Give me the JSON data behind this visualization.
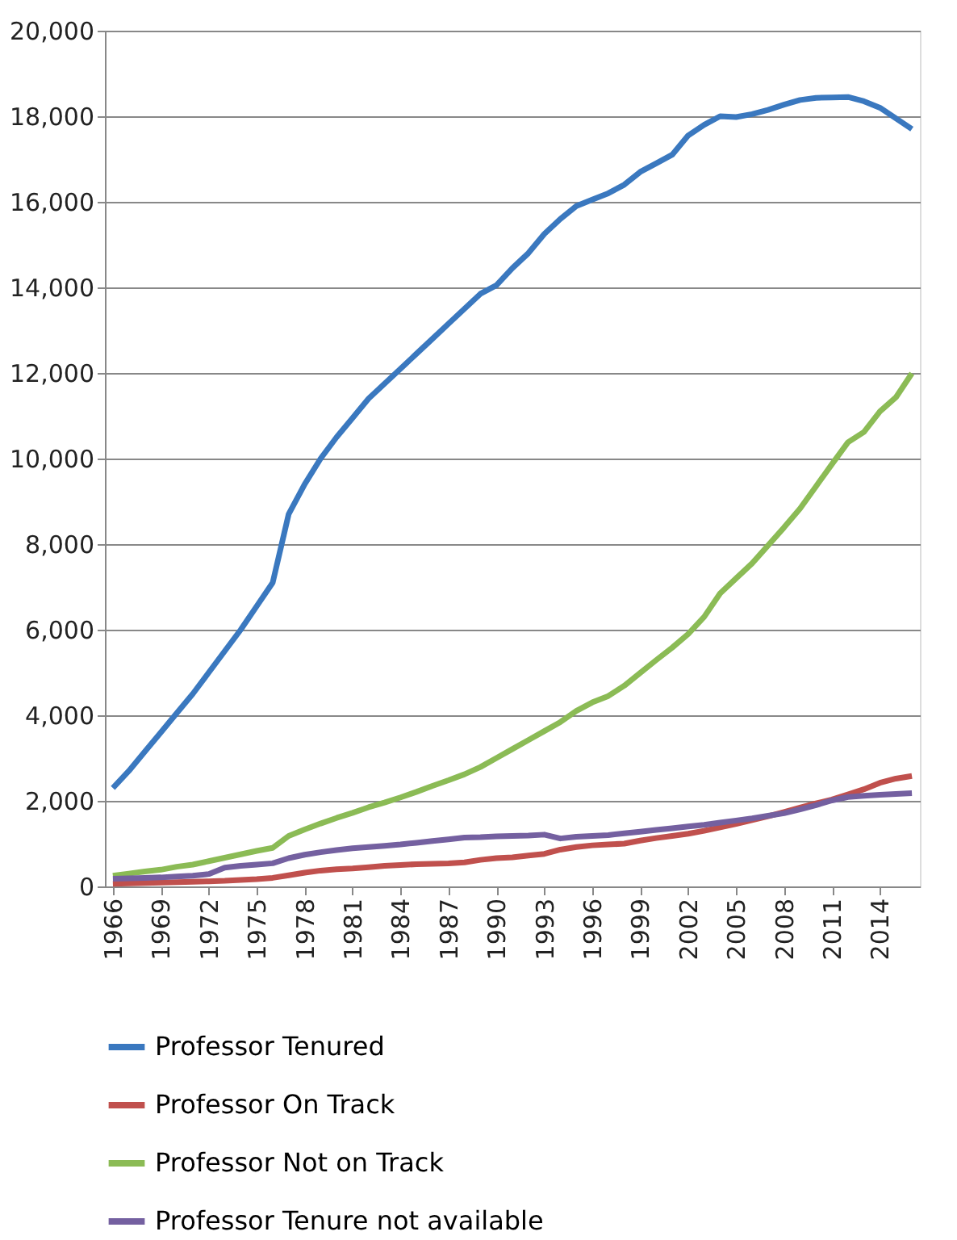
{
  "chart_data": {
    "type": "line",
    "x": [
      1966,
      1967,
      1968,
      1969,
      1970,
      1971,
      1972,
      1973,
      1974,
      1975,
      1976,
      1977,
      1978,
      1979,
      1980,
      1981,
      1982,
      1983,
      1984,
      1985,
      1986,
      1987,
      1988,
      1989,
      1990,
      1991,
      1992,
      1993,
      1994,
      1995,
      1996,
      1997,
      1998,
      1999,
      2000,
      2001,
      2002,
      2003,
      2004,
      2005,
      2006,
      2007,
      2008,
      2009,
      2010,
      2011,
      2012,
      2013,
      2014,
      2015,
      2016
    ],
    "series": [
      {
        "name": "Professor Tenured",
        "color": "#3a78bf",
        "values": [
          2300,
          2700,
          3150,
          3600,
          4050,
          4500,
          5000,
          5500,
          6000,
          6550,
          7100,
          8700,
          9400,
          10000,
          10500,
          10950,
          11400,
          11750,
          12100,
          12450,
          12800,
          13150,
          13500,
          13850,
          14050,
          14450,
          14800,
          15250,
          15600,
          15900,
          16050,
          16200,
          16400,
          16700,
          16900,
          17100,
          17550,
          17800,
          18000,
          17980,
          18050,
          18150,
          18270,
          18380,
          18430,
          18440,
          18450,
          18350,
          18200,
          17950,
          17700
        ]
      },
      {
        "name": "Professor On Track",
        "color": "#c0504d",
        "values": [
          60,
          70,
          80,
          90,
          100,
          110,
          120,
          130,
          150,
          170,
          200,
          260,
          320,
          370,
          400,
          420,
          450,
          480,
          500,
          520,
          530,
          540,
          560,
          620,
          660,
          680,
          720,
          760,
          860,
          920,
          960,
          980,
          1000,
          1070,
          1130,
          1180,
          1230,
          1300,
          1380,
          1460,
          1550,
          1640,
          1740,
          1840,
          1940,
          2030,
          2150,
          2270,
          2420,
          2520,
          2580
        ]
      },
      {
        "name": "Professor Not on Track",
        "color": "#8bbb55",
        "values": [
          250,
          300,
          350,
          390,
          460,
          510,
          590,
          670,
          750,
          830,
          900,
          1180,
          1330,
          1470,
          1600,
          1720,
          1850,
          1960,
          2080,
          2210,
          2350,
          2480,
          2620,
          2790,
          3000,
          3210,
          3420,
          3630,
          3840,
          4100,
          4300,
          4450,
          4690,
          4990,
          5290,
          5580,
          5900,
          6300,
          6850,
          7200,
          7550,
          7970,
          8390,
          8830,
          9350,
          9870,
          10380,
          10620,
          11100,
          11430,
          11990
        ]
      },
      {
        "name": "Professor Tenure not available",
        "color": "#7460a0",
        "values": [
          180,
          190,
          200,
          210,
          230,
          250,
          290,
          440,
          480,
          510,
          540,
          660,
          740,
          800,
          850,
          890,
          920,
          950,
          980,
          1020,
          1060,
          1100,
          1140,
          1150,
          1170,
          1180,
          1190,
          1210,
          1120,
          1160,
          1180,
          1200,
          1240,
          1280,
          1320,
          1360,
          1400,
          1440,
          1490,
          1540,
          1590,
          1650,
          1710,
          1800,
          1900,
          2010,
          2090,
          2120,
          2140,
          2160,
          2180
        ]
      }
    ],
    "xlim": [
      1965.5,
      2016.5
    ],
    "xticks": [
      1966,
      1969,
      1972,
      1975,
      1978,
      1981,
      1984,
      1987,
      1990,
      1993,
      1996,
      1999,
      2002,
      2005,
      2008,
      2011,
      2014
    ],
    "ylim": [
      0,
      20000
    ],
    "yticks": [
      0,
      {
        "value": 2000,
        "label": "2,000"
      },
      {
        "value": 4000,
        "label": "4,000"
      },
      {
        "value": 6000,
        "label": "6,000"
      },
      {
        "value": 8000,
        "label": "8,000"
      },
      {
        "value": 10000,
        "label": "10,000"
      },
      {
        "value": 12000,
        "label": "12,000"
      },
      {
        "value": 14000,
        "label": "14,000"
      },
      {
        "value": 16000,
        "label": "16,000"
      },
      {
        "value": 18000,
        "label": "18,000"
      },
      {
        "value": 20000,
        "label": "20,000"
      }
    ],
    "grid": "y",
    "legend": "bottom",
    "marker": "none",
    "line_style": "solid"
  }
}
